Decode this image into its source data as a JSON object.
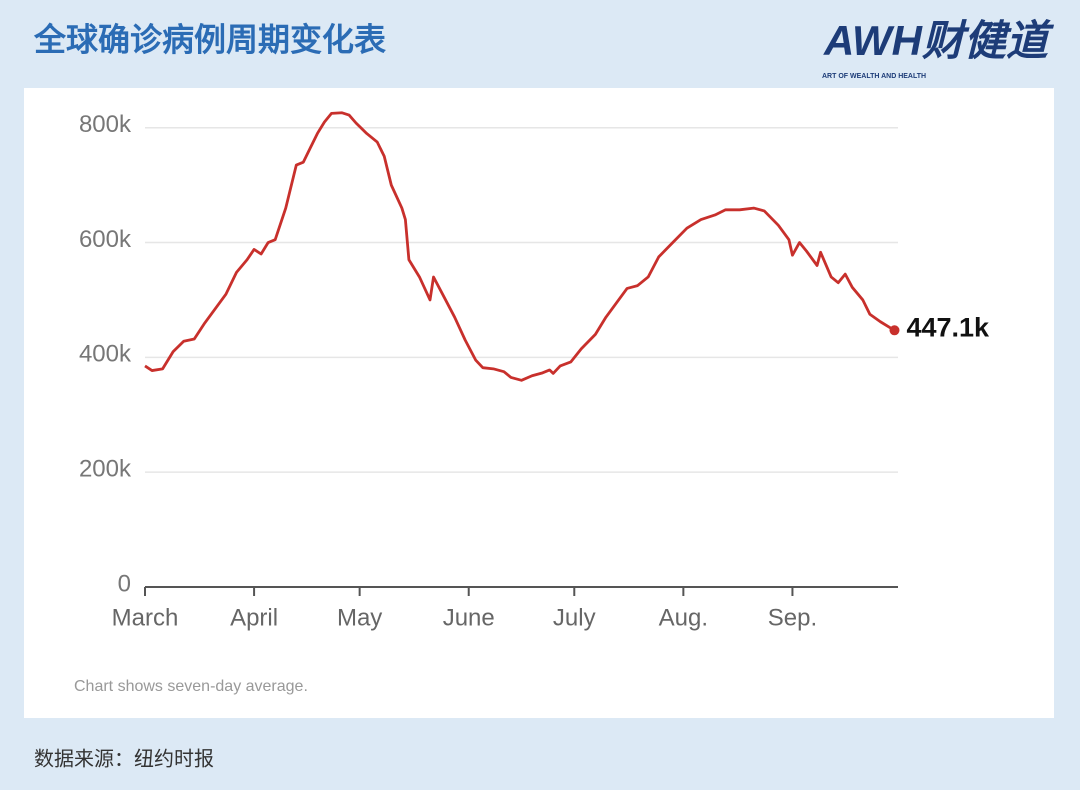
{
  "header": {
    "logo": "AWH财健道",
    "logo_sub": "ART OF WEALTH AND HEALTH"
  },
  "chart_data": {
    "type": "line",
    "title": "全球确诊病例周期变化表",
    "x": [
      0,
      2,
      5,
      8,
      11,
      14,
      17,
      20,
      23,
      26,
      29,
      31,
      33,
      35,
      37,
      40,
      43,
      45,
      47,
      49,
      51,
      53,
      56,
      58,
      60,
      63,
      66,
      68,
      70,
      73,
      74,
      75,
      78,
      81,
      82,
      85,
      88,
      91,
      94,
      96,
      99,
      102,
      104,
      107,
      110,
      113,
      115,
      116,
      118,
      121,
      124,
      128,
      131,
      134,
      137,
      140,
      143,
      146,
      150,
      154,
      158,
      162,
      165,
      169,
      173,
      176,
      180,
      183,
      184,
      186,
      188,
      191,
      192,
      195,
      197,
      199,
      201,
      204,
      206,
      209,
      213
    ],
    "series": [
      {
        "name": "Seven-day average",
        "color": "#c8302c",
        "values": [
          385000,
          377000,
          380000,
          410000,
          428000,
          432000,
          460000,
          485000,
          510000,
          548000,
          570000,
          588000,
          580000,
          600000,
          605000,
          660000,
          735000,
          740000,
          765000,
          790000,
          810000,
          825000,
          826000,
          822000,
          808000,
          790000,
          775000,
          750000,
          700000,
          660000,
          640000,
          570000,
          540000,
          500000,
          540000,
          505000,
          470000,
          430000,
          395000,
          382000,
          380000,
          375000,
          365000,
          360000,
          368000,
          373000,
          378000,
          372000,
          385000,
          392000,
          415000,
          440000,
          470000,
          495000,
          520000,
          525000,
          540000,
          575000,
          600000,
          625000,
          640000,
          648000,
          657000,
          657000,
          660000,
          655000,
          630000,
          605000,
          578000,
          600000,
          585000,
          560000,
          583000,
          540000,
          530000,
          545000,
          522000,
          500000,
          475000,
          462000,
          447100
        ]
      }
    ],
    "annotation": "447.1k",
    "xlim": [
      0,
      214
    ],
    "xticks": [
      {
        "value": 0,
        "label": "March"
      },
      {
        "value": 31,
        "label": "April"
      },
      {
        "value": 61,
        "label": "May"
      },
      {
        "value": 92,
        "label": "June"
      },
      {
        "value": 122,
        "label": "July"
      },
      {
        "value": 153,
        "label": "Aug."
      },
      {
        "value": 184,
        "label": "Sep."
      }
    ],
    "ylim": [
      0,
      850000
    ],
    "yticks": [
      {
        "value": 0,
        "label": "0"
      },
      {
        "value": 200000,
        "label": "200k"
      },
      {
        "value": 400000,
        "label": "400k"
      },
      {
        "value": 600000,
        "label": "600k"
      },
      {
        "value": 800000,
        "label": "800k"
      }
    ],
    "grid": true,
    "note": "Chart shows seven-day average."
  },
  "footer": {
    "source": "数据来源：纽约时报"
  }
}
